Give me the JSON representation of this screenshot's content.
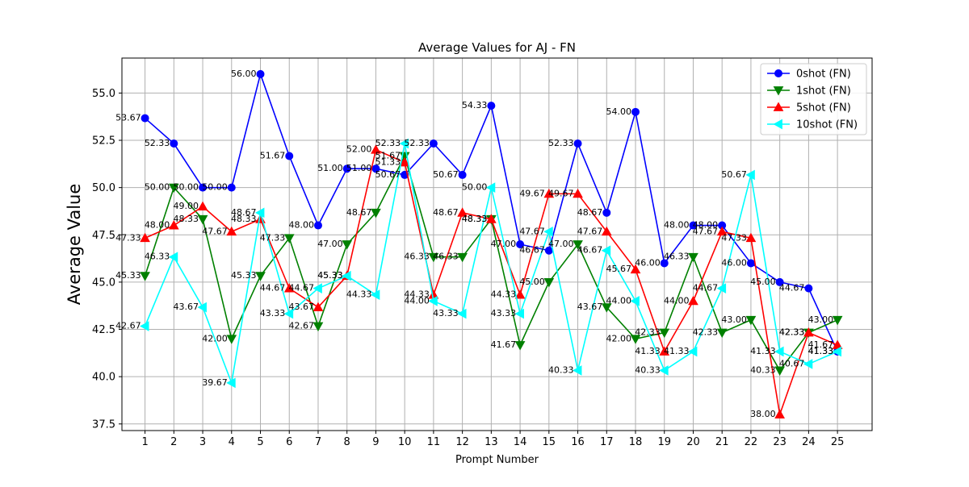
{
  "chart_data": {
    "type": "line",
    "title": "Average Values for AJ - FN",
    "xlabel": "Prompt Number",
    "ylabel": "Average Value",
    "x": [
      1,
      2,
      3,
      4,
      5,
      6,
      7,
      8,
      9,
      10,
      11,
      12,
      13,
      14,
      15,
      16,
      17,
      18,
      19,
      20,
      21,
      22,
      23,
      24,
      25
    ],
    "xlim": [
      0.2,
      26.2
    ],
    "ylim": [
      37.15,
      56.85
    ],
    "yticks": [
      "37.5",
      "40.0",
      "42.5",
      "45.0",
      "47.5",
      "50.0",
      "52.5",
      "55.0"
    ],
    "grid": true,
    "legend_position": "top-right",
    "series": [
      {
        "name": "0shot (FN)",
        "color": "#0000ff",
        "marker": "circle",
        "values": [
          53.67,
          52.33,
          50.0,
          50.0,
          56.0,
          51.67,
          48.0,
          51.0,
          51.0,
          50.67,
          52.33,
          50.67,
          54.33,
          47.0,
          46.67,
          52.33,
          48.67,
          54.0,
          46.0,
          48.0,
          48.0,
          46.0,
          45.0,
          44.67,
          41.33
        ]
      },
      {
        "name": "1shot (FN)",
        "color": "#008000",
        "marker": "triangle-down",
        "values": [
          45.33,
          50.0,
          48.33,
          42.0,
          45.33,
          47.33,
          42.67,
          47.0,
          48.67,
          51.67,
          46.33,
          46.33,
          48.33,
          41.67,
          45.0,
          47.0,
          43.67,
          42.0,
          42.33,
          46.33,
          42.33,
          43.0,
          40.33,
          42.33,
          43.0
        ]
      },
      {
        "name": "5shot (FN)",
        "color": "#ff0000",
        "marker": "triangle-up",
        "values": [
          47.33,
          48.0,
          49.0,
          47.67,
          48.33,
          44.67,
          43.67,
          45.33,
          52.0,
          51.33,
          44.33,
          48.67,
          48.33,
          44.33,
          49.67,
          49.67,
          47.67,
          45.67,
          41.33,
          44.0,
          47.67,
          47.33,
          38.0,
          42.33,
          41.67
        ]
      },
      {
        "name": "10shot (FN)",
        "color": "#00ffff",
        "marker": "triangle-left",
        "values": [
          42.67,
          46.33,
          43.67,
          39.67,
          48.67,
          43.33,
          44.67,
          45.33,
          44.33,
          52.33,
          44.0,
          43.33,
          50.0,
          43.33,
          47.67,
          40.33,
          46.67,
          44.0,
          40.33,
          41.33,
          44.67,
          50.67,
          41.33,
          40.67,
          41.33
        ]
      }
    ]
  }
}
